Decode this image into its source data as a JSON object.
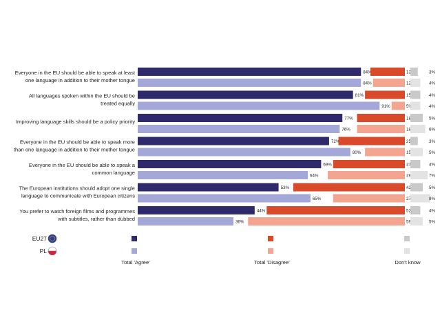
{
  "chart_data": {
    "type": "bar",
    "stacked": true,
    "orientation": "horizontal",
    "statements": [
      [
        "Everyone in the EU should be able to speak at least",
        "one language in addition to their mother tongue"
      ],
      [
        "All languages spoken within the EU should be",
        "treated equally"
      ],
      [
        "Improving language skills should be a policy priority"
      ],
      [
        "Everyone in the EU should be able to speak more",
        "than one language in addition to their mother tongue"
      ],
      [
        "Everyone in the EU should be able to speak a",
        "common language"
      ],
      [
        "The European institutions should adopt one single",
        "language to communicate with European citizens"
      ],
      [
        "You prefer to watch foreign films and programmes",
        "with subtitles, rather than dubbed"
      ]
    ],
    "series": [
      {
        "name": "EU27",
        "agree": [
          84,
          81,
          77,
          72,
          69,
          53,
          44
        ],
        "disagree": [
          13,
          15,
          18,
          25,
          27,
          42,
          52
        ],
        "dont_know": [
          3,
          4,
          5,
          3,
          4,
          5,
          4
        ],
        "agree_labels": [
          "84%",
          "81%",
          "77%",
          "72%",
          "69%",
          "53%",
          "44%"
        ],
        "disagree_labels": [
          "13%",
          "15%",
          "18%",
          "25%",
          "27%",
          "42%",
          "52%"
        ],
        "dont_know_labels": [
          "3%",
          "4%",
          "5%",
          "3%",
          "4%",
          "5%",
          "4%"
        ]
      },
      {
        "name": "PL",
        "agree": [
          84,
          91,
          76,
          80,
          64,
          65,
          36
        ],
        "disagree": [
          12,
          5,
          18,
          15,
          29,
          27,
          59
        ],
        "dont_know": [
          4,
          4,
          6,
          5,
          7,
          8,
          5
        ],
        "agree_labels": [
          "84%",
          "91%",
          "76%",
          "80%",
          "64%",
          "65%",
          "36%"
        ],
        "disagree_labels": [
          "12%",
          "5%",
          "18%",
          "15%",
          "29%",
          "27%",
          "59%"
        ],
        "dont_know_labels": [
          "4%",
          "4%",
          "6%",
          "5%",
          "7%",
          "8%",
          "5%"
        ]
      }
    ],
    "categories": [
      "Total 'Agree'",
      "Total 'Disagree'",
      "Don't know"
    ],
    "legend_placement": "bottom-left",
    "colors": {
      "EU27": {
        "agree": "#2e2a6b",
        "disagree": "#d94a2b",
        "dont_know": "#c9c9c9"
      },
      "PL": {
        "agree": "#a3a8d9",
        "disagree": "#f4a590",
        "dont_know": "#e3e3e3"
      }
    }
  }
}
